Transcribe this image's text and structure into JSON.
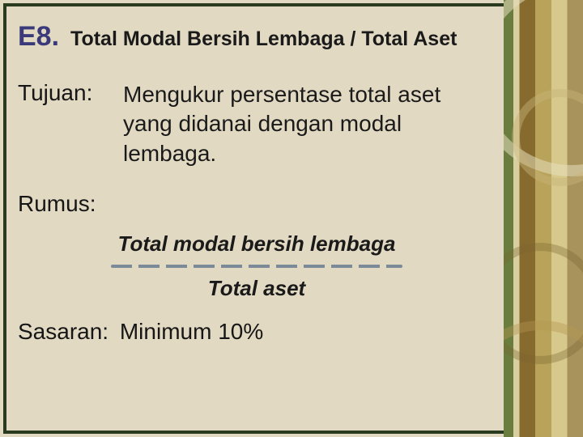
{
  "slide": {
    "number": "E8.",
    "title": "Total Modal Bersih Lembaga / Total Aset",
    "tujuan": {
      "label": "Tujuan:",
      "text": "Mengukur persentase total aset yang didanai dengan modal lembaga."
    },
    "rumus": {
      "label": "Rumus:",
      "numerator": "Total  modal  bersih lembaga",
      "denominator": "Total aset"
    },
    "sasaran": {
      "label": "Sasaran:",
      "value": "Minimum 10%"
    }
  },
  "style": {
    "background_color": "#e2d9c2",
    "frame_color": "#2a3a1e",
    "number_color": "#3a3a7a",
    "text_color": "#1a1a1a",
    "divider_color": "#7a8a99",
    "title_fontsize_pt": 19,
    "number_fontsize_pt": 26,
    "body_fontsize_pt": 21,
    "formula_fontsize_pt": 20,
    "decor_palette": [
      "#6b7d3e",
      "#d9ce9f",
      "#876b2e",
      "#b9a35a",
      "#d7c98c",
      "#a8935c"
    ]
  }
}
